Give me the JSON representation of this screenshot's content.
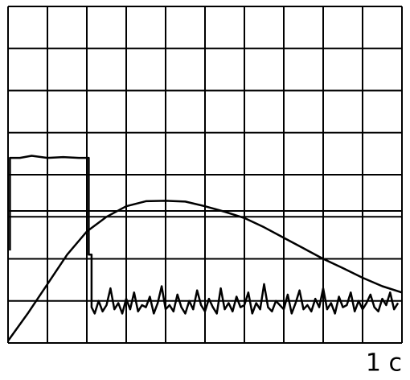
{
  "chart_data": {
    "type": "line",
    "xlabel": "1 с",
    "xlim": [
      0,
      10
    ],
    "ylim": [
      0,
      8
    ],
    "xticks": [
      0,
      1,
      2,
      3,
      4,
      5,
      6,
      7,
      8,
      9,
      10
    ],
    "yticks": [
      0,
      1,
      2,
      3,
      4,
      5,
      6,
      7,
      8
    ],
    "grid": true,
    "series": [
      {
        "color": "#000000",
        "x": [
          0.05,
          0.05,
          0.3,
          0.6,
          1.0,
          1.4,
          1.8,
          2.05,
          2.05,
          2.12,
          2.12,
          2.2,
          2.3,
          2.4,
          2.5,
          2.6,
          2.7,
          2.8,
          2.9,
          3.0,
          3.1,
          3.2,
          3.3,
          3.4,
          3.5,
          3.6,
          3.7,
          3.8,
          3.9,
          4.0,
          4.1,
          4.2,
          4.3,
          4.4,
          4.5,
          4.6,
          4.7,
          4.8,
          4.9,
          5.0,
          5.1,
          5.2,
          5.3,
          5.4,
          5.5,
          5.6,
          5.7,
          5.8,
          5.9,
          6.0,
          6.1,
          6.2,
          6.3,
          6.4,
          6.5,
          6.6,
          6.7,
          6.8,
          6.9,
          7.0,
          7.1,
          7.2,
          7.3,
          7.4,
          7.5,
          7.6,
          7.7,
          7.8,
          7.9,
          8.0,
          8.1,
          8.2,
          8.3,
          8.4,
          8.5,
          8.6,
          8.7,
          8.8,
          8.9,
          9.0,
          9.1,
          9.2,
          9.3,
          9.4,
          9.5,
          9.6,
          9.7,
          9.8,
          9.9
        ],
        "values": [
          2.2,
          4.4,
          4.4,
          4.45,
          4.4,
          4.42,
          4.4,
          4.4,
          2.1,
          2.1,
          0.85,
          0.7,
          1.0,
          0.75,
          0.9,
          1.3,
          0.8,
          0.95,
          0.7,
          1.05,
          0.8,
          1.2,
          0.75,
          0.9,
          0.85,
          1.1,
          0.7,
          0.95,
          1.35,
          0.8,
          0.9,
          0.75,
          1.15,
          0.85,
          0.7,
          1.0,
          0.8,
          1.25,
          0.9,
          0.75,
          1.05,
          0.85,
          0.7,
          1.3,
          0.8,
          0.95,
          0.75,
          1.1,
          0.85,
          0.9,
          1.2,
          0.7,
          0.95,
          0.8,
          1.4,
          0.85,
          0.75,
          1.0,
          0.9,
          0.8,
          1.15,
          0.7,
          0.95,
          1.25,
          0.8,
          0.9,
          0.75,
          1.05,
          0.85,
          1.3,
          0.8,
          0.95,
          0.7,
          1.1,
          0.85,
          0.9,
          1.2,
          0.75,
          1.0,
          0.8,
          0.95,
          1.15,
          0.85,
          0.75,
          1.05,
          0.9,
          1.2,
          0.8,
          0.95
        ]
      },
      {
        "color": "#000000",
        "x": [
          0,
          0.5,
          1,
          1.5,
          2,
          2.5,
          3,
          3.5,
          4,
          4.5,
          5,
          5.5,
          6,
          6.5,
          7,
          7.5,
          8,
          8.5,
          9,
          9.5,
          10
        ],
        "values": [
          0.05,
          0.7,
          1.4,
          2.1,
          2.65,
          3.0,
          3.25,
          3.37,
          3.38,
          3.36,
          3.25,
          3.12,
          2.97,
          2.75,
          2.5,
          2.25,
          2.0,
          1.78,
          1.55,
          1.35,
          1.2
        ]
      }
    ]
  }
}
